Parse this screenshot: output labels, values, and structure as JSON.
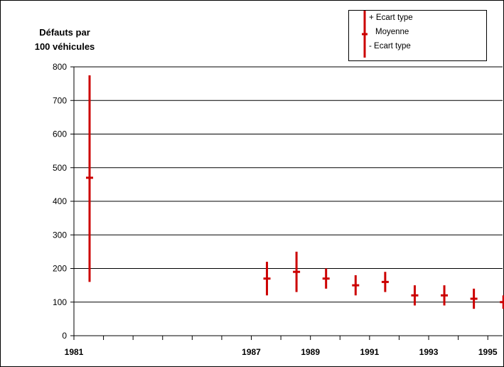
{
  "y_title_line1": "Défauts par",
  "y_title_line2": "100 véhicules",
  "legend": {
    "plus": "+ Ecart type",
    "mean": "Moyenne",
    "minus": "- Ecart type"
  },
  "colors": {
    "errorbar": "#cc0000",
    "axis": "#000000"
  },
  "chart_data": {
    "type": "scatter",
    "chart_subtype": "error_bar",
    "ylim": [
      0,
      800
    ],
    "yticks": [
      0,
      100,
      200,
      300,
      400,
      500,
      600,
      700,
      800
    ],
    "grid": true,
    "legend_position": "top-right",
    "xlim": [
      1981,
      1995.5
    ],
    "xticks": [
      1981,
      1982,
      1983,
      1984,
      1985,
      1986,
      1987,
      1988,
      1989,
      1990,
      1991,
      1992,
      1993,
      1994,
      1995
    ],
    "xtick_labels": [
      "1981",
      "",
      "",
      "",
      "",
      "",
      "1987",
      "",
      "1989",
      "",
      "1991",
      "",
      "1993",
      "",
      "1995"
    ],
    "series": [
      {
        "name": "Moyenne",
        "role": "mean",
        "x": [
          1981,
          1987,
          1988,
          1989,
          1990,
          1991,
          1992,
          1993,
          1994,
          1995
        ],
        "values": [
          470,
          170,
          190,
          170,
          150,
          160,
          120,
          120,
          110,
          100
        ]
      },
      {
        "name": "+ Ecart type",
        "role": "upper",
        "x": [
          1981,
          1987,
          1988,
          1989,
          1990,
          1991,
          1992,
          1993,
          1994,
          1995
        ],
        "values": [
          775,
          220,
          250,
          200,
          180,
          190,
          150,
          150,
          140,
          120
        ]
      },
      {
        "name": "- Ecart type",
        "role": "lower",
        "x": [
          1981,
          1987,
          1988,
          1989,
          1990,
          1991,
          1992,
          1993,
          1994,
          1995
        ],
        "values": [
          160,
          120,
          130,
          140,
          120,
          130,
          90,
          90,
          80,
          80
        ]
      }
    ]
  }
}
